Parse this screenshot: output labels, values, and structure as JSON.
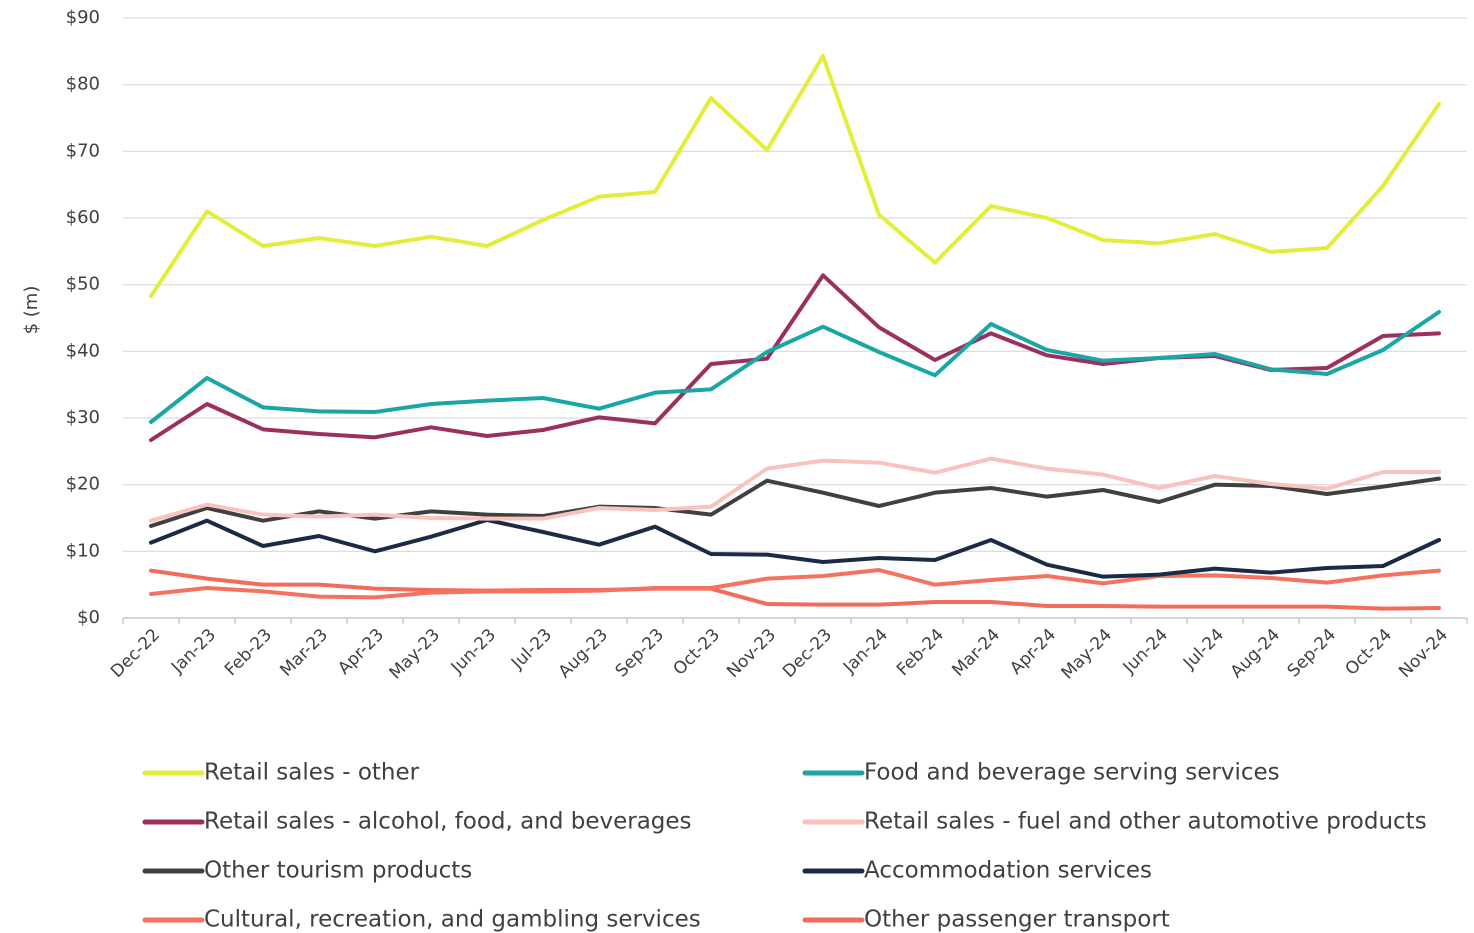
{
  "chart_data": {
    "type": "line",
    "ylabel": "$ (m)",
    "categories": [
      "Dec-22",
      "Jan-23",
      "Feb-23",
      "Mar-23",
      "Apr-23",
      "May-23",
      "Jun-23",
      "Jul-23",
      "Aug-23",
      "Sep-23",
      "Oct-23",
      "Nov-23",
      "Dec-23",
      "Jan-24",
      "Feb-24",
      "Mar-24",
      "Apr-24",
      "May-24",
      "Jun-24",
      "Jul-24",
      "Aug-24",
      "Sep-24",
      "Oct-24",
      "Nov-24"
    ],
    "ylim": [
      0,
      90
    ],
    "yticks": [
      {
        "value": 0,
        "label": "$0"
      },
      {
        "value": 10,
        "label": "$10"
      },
      {
        "value": 20,
        "label": "$20"
      },
      {
        "value": 30,
        "label": "$30"
      },
      {
        "value": 40,
        "label": "$40"
      },
      {
        "value": 50,
        "label": "$50"
      },
      {
        "value": 60,
        "label": "$60"
      },
      {
        "value": 70,
        "label": "$70"
      },
      {
        "value": 80,
        "label": "$80"
      },
      {
        "value": 90,
        "label": "$90"
      }
    ],
    "grid": true,
    "legend": "bottom",
    "series": [
      {
        "name": "Retail sales - other",
        "color": "#e3ee3c",
        "values": [
          48.3,
          61,
          55.8,
          57,
          55.8,
          57.2,
          55.8,
          59.7,
          63.2,
          63.9,
          78,
          70.2,
          84.3,
          60.5,
          53.3,
          61.8,
          60,
          56.7,
          56.2,
          57.6,
          54.9,
          55.5,
          64.8,
          77.1
        ]
      },
      {
        "name": "Food and beverage serving services",
        "color": "#1ba6a6",
        "values": [
          29.4,
          36,
          31.6,
          31,
          30.9,
          32.1,
          32.6,
          33,
          31.4,
          33.8,
          34.3,
          39.9,
          43.7,
          39.9,
          36.4,
          44.1,
          40.2,
          38.6,
          39,
          39.6,
          37.3,
          36.6,
          40.2,
          45.9
        ]
      },
      {
        "name": "Retail sales - alcohol, food, and beverages",
        "color": "#9b2f5e",
        "values": [
          26.7,
          32.1,
          28.3,
          27.6,
          27.1,
          28.6,
          27.3,
          28.2,
          30.1,
          29.2,
          38.1,
          38.9,
          51.4,
          43.6,
          38.7,
          42.7,
          39.4,
          38.1,
          39,
          39.3,
          37.2,
          37.5,
          42.3,
          42.7
        ]
      },
      {
        "name": "Retail sales - fuel and other automotive products",
        "color": "#f8c2bd",
        "values": [
          14.6,
          17,
          15.5,
          15.2,
          15.5,
          15,
          14.9,
          14.9,
          16.5,
          16.2,
          16.7,
          22.4,
          23.6,
          23.3,
          21.8,
          23.9,
          22.4,
          21.5,
          19.5,
          21.3,
          20.1,
          19.4,
          21.9,
          21.9
        ]
      },
      {
        "name": "Other tourism products",
        "color": "#404040",
        "values": [
          13.8,
          16.5,
          14.6,
          16,
          14.9,
          16,
          15.5,
          15.3,
          16.7,
          16.5,
          15.5,
          20.6,
          18.8,
          16.8,
          18.8,
          19.5,
          18.2,
          19.2,
          17.4,
          20,
          19.8,
          18.6,
          19.7,
          20.9
        ]
      },
      {
        "name": "Accommodation services",
        "color": "#1b2a45",
        "values": [
          11.3,
          14.6,
          10.8,
          12.3,
          10,
          12.2,
          14.7,
          12.9,
          11,
          13.7,
          9.6,
          9.5,
          8.4,
          9,
          8.7,
          11.7,
          8,
          6.2,
          6.5,
          7.4,
          6.8,
          7.5,
          7.8,
          11.7
        ]
      },
      {
        "name": "Cultural, recreation, and gambling services",
        "color": "#f4725f",
        "values": [
          3.6,
          4.5,
          4,
          3.2,
          3.1,
          3.8,
          4,
          4,
          4.1,
          4.5,
          4.5,
          5.9,
          6.3,
          7.2,
          5,
          5.7,
          6.3,
          5.2,
          6.3,
          6.4,
          6,
          5.3,
          6.4,
          7.1
        ]
      },
      {
        "name": "Other passenger transport",
        "color": "#f26b5b",
        "values": [
          7.1,
          5.9,
          5,
          5,
          4.4,
          4.2,
          4.1,
          4.2,
          4.2,
          4.4,
          4.4,
          2.1,
          2,
          2,
          2.4,
          2.4,
          1.8,
          1.8,
          1.7,
          1.7,
          1.7,
          1.7,
          1.4,
          1.5
        ]
      }
    ]
  }
}
